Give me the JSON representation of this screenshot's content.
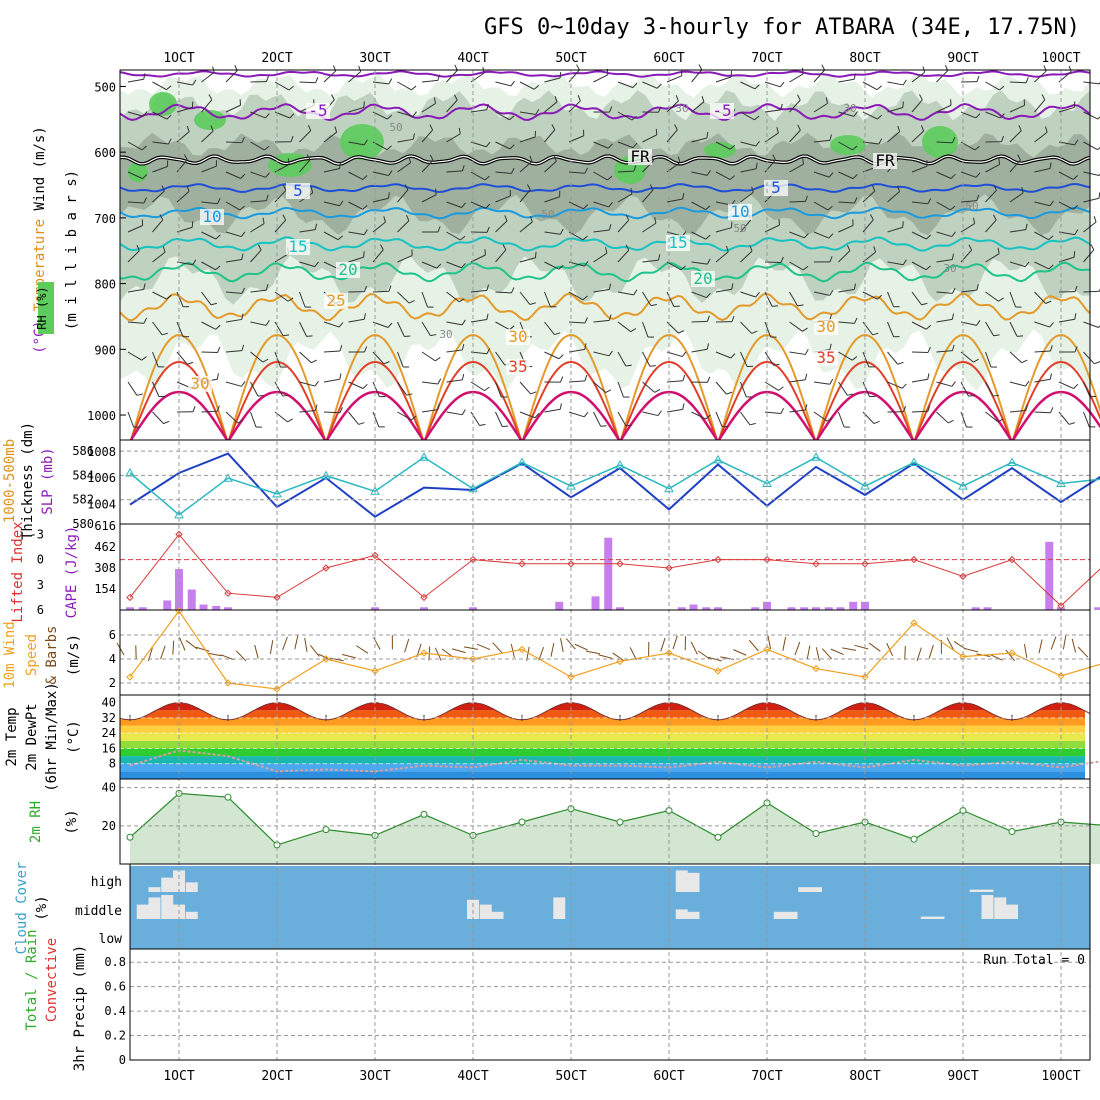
{
  "title": "GFS 0~10day 3-hourly for ATBARA (34E, 17.75N)",
  "colors": {
    "grid": "#999999",
    "frame": "#000000",
    "temp_purple": "#8a1ab8",
    "temp_blue": "#1f4fd6",
    "temp_sky": "#1a9be0",
    "temp_teal": "#17c2c2",
    "temp_green": "#1ec48a",
    "temp_orange": "#e49a2a",
    "temp_red": "#e0402a",
    "temp_magenta": "#d0106e",
    "rh_dark": "#9fb09f",
    "rh_mid": "#bfd1bf",
    "rh_light": "#e6f2e6",
    "rh_green": "#5ccc5c",
    "thickness": "#1f3fc6",
    "slp": "#28b8c0",
    "lifted": "#d83a3a",
    "cape": "#c77ff0",
    "wind_speed": "#f0a020",
    "wind_barb": "#7a4a18",
    "dewpoint": "#d4a0a0",
    "rh2m": "#2e8b2e",
    "rh2m_fill": "#d2e6d2",
    "cloud_bg": "#6aaedb",
    "cloud_bar": "#e8e8e8",
    "label_purple": "#8a1ab8",
    "label_red": "#e03030",
    "label_orange": "#e0901a",
    "label_teal": "#3aa0c8",
    "label_green": "#2eaa2e",
    "label_brown": "#7a4a18"
  },
  "dates": [
    "1OCT",
    "2OCT",
    "3OCT",
    "4OCT",
    "5OCT",
    "6OCT",
    "7OCT",
    "8OCT",
    "9OCT",
    "10OCT"
  ],
  "panels": {
    "upper_air": {
      "ylabel_parts": [
        {
          "text": "Wind (m/s)",
          "color": "#000000"
        },
        {
          "text": "Temperature",
          "color": "#e0901a"
        },
        {
          "text": "(°C)",
          "color": "#8a1ab8"
        }
      ],
      "ylabel2": "(m i l l i b a r s)",
      "rh_tag": "RH (%)",
      "yticks": [
        "500",
        "600",
        "700",
        "800",
        "900",
        "1000"
      ],
      "isotherm_labels": [
        "-5",
        "-5",
        "5",
        "5",
        "10",
        "10",
        "15",
        "15",
        "20",
        "20",
        "25",
        "30",
        "30",
        "35",
        "35",
        "30",
        "FR",
        "FR"
      ],
      "rh_labels": [
        "30",
        "30",
        "50",
        "50",
        "30",
        "50",
        "50",
        "30",
        "30"
      ]
    },
    "thickness": {
      "ylabel1": "1000-500mb",
      "ylabel2": "Thickness (dm)",
      "ylabel3": "SLP (mb)",
      "left_ticks": [
        "586",
        "584",
        "582",
        "580"
      ],
      "right_ticks": [
        "1008",
        "1006",
        "1004"
      ]
    },
    "stability": {
      "ylabel1": "Lifted Index",
      "ylabel2": "CAPE (J/kg)",
      "left_ticks": [
        "-3",
        "0",
        "3",
        "6"
      ],
      "right_ticks": [
        "616",
        "462",
        "308",
        "154"
      ]
    },
    "wind10m": {
      "ylabel1": "10m Wind",
      "ylabel2": "Speed",
      "ylabel3": "& Barbs",
      "ylabel4": "(m/s)",
      "ticks": [
        "6",
        "4",
        "2"
      ]
    },
    "temp2m": {
      "ylabel1": "2m Temp",
      "ylabel2": "2m DewPt",
      "ylabel3": "(6hr Min/Max)",
      "ylabel4": "(°C)",
      "ticks": [
        "40",
        "32",
        "24",
        "16",
        "8"
      ]
    },
    "rh2m": {
      "ylabel1": "2m RH",
      "ylabel2": "(%)",
      "ticks": [
        "40",
        "20"
      ]
    },
    "cloud": {
      "ylabel1": "Cloud Cover",
      "ylabel2": "(%)",
      "levels": [
        "high",
        "middle",
        "low"
      ]
    },
    "precip": {
      "ylabel1": "Total / Rain",
      "ylabel2": "Convective",
      "ylabel3": "3hr Precip (mm)",
      "ticks": [
        "0.8",
        "0.6",
        "0.4",
        "0.2",
        "0"
      ],
      "run_total": "Run Total = 0"
    }
  },
  "chart_data": [
    {
      "type": "line",
      "title": "1000-500mb Thickness (dm) / SLP (mb)",
      "x_unit": "day",
      "x": [
        0,
        0.5,
        1,
        1.5,
        2,
        2.5,
        3,
        3.5,
        4,
        4.5,
        5,
        5.5,
        6,
        6.5,
        7,
        7.5,
        8,
        8.5,
        9,
        9.5,
        10
      ],
      "series": [
        {
          "name": "1000-500mb Thickness (dm)",
          "values": [
            581.6,
            584.2,
            585.8,
            581.4,
            583.8,
            580.6,
            583.0,
            582.8,
            585.0,
            582.2,
            584.6,
            581.2,
            584.9,
            581.5,
            584.7,
            582.4,
            585.0,
            582.0,
            584.6,
            581.8,
            584.4
          ]
        },
        {
          "name": "SLP (mb)",
          "values": [
            1006.4,
            1003.2,
            1006.0,
            1004.8,
            1006.2,
            1005.0,
            1007.6,
            1005.2,
            1007.2,
            1005.4,
            1007.0,
            1005.2,
            1007.4,
            1005.6,
            1007.6,
            1005.4,
            1007.2,
            1005.4,
            1007.2,
            1005.6,
            1006.0
          ]
        }
      ],
      "ylim_left": [
        580,
        587
      ],
      "ylim_right": [
        1002.5,
        1009
      ]
    },
    {
      "type": "bar",
      "title": "Lifted Index / CAPE (J/kg)",
      "x_unit": "day",
      "cape_x": [
        0,
        0.13,
        0.38,
        0.5,
        0.63,
        0.75,
        0.88,
        1.0,
        2.5,
        3.0,
        3.5,
        4.38,
        4.75,
        4.88,
        5.0,
        5.63,
        5.75,
        5.88,
        6.0,
        6.38,
        6.5,
        6.75,
        6.88,
        7.0,
        7.13,
        7.25,
        7.38,
        7.5,
        8.63,
        8.75,
        9.38,
        9.5,
        9.88,
        10.0
      ],
      "cape_values": [
        20,
        20,
        70,
        300,
        150,
        40,
        30,
        20,
        20,
        20,
        20,
        60,
        100,
        530,
        20,
        20,
        40,
        20,
        20,
        20,
        60,
        20,
        20,
        20,
        20,
        20,
        60,
        60,
        20,
        20,
        500,
        20,
        20,
        20
      ],
      "lifted_index_x": [
        0,
        0.5,
        1,
        1.5,
        2,
        2.5,
        3,
        3.5,
        4,
        4.5,
        5,
        5.5,
        6,
        6.5,
        7,
        7.5,
        8,
        8.5,
        9,
        9.5,
        10
      ],
      "lifted_index": [
        4.5,
        -3.0,
        4.0,
        4.5,
        1.0,
        -0.5,
        4.5,
        0.0,
        0.5,
        0.5,
        0.5,
        1.0,
        0.0,
        0.0,
        0.5,
        0.5,
        0.0,
        2.0,
        0.0,
        5.5,
        0.0
      ],
      "ylim_cape": [
        0,
        616
      ],
      "ylim_li": [
        6,
        -4
      ]
    },
    {
      "type": "line",
      "title": "10m Wind Speed (m/s)",
      "x_unit": "day",
      "x": [
        0,
        0.5,
        1,
        1.5,
        2,
        2.5,
        3,
        3.5,
        4,
        4.5,
        5,
        5.5,
        6,
        6.5,
        7,
        7.5,
        8,
        8.5,
        9,
        9.5,
        10
      ],
      "series": [
        {
          "name": "10m Wind Speed",
          "values": [
            2.5,
            8.0,
            2.0,
            1.5,
            4.0,
            3.0,
            4.5,
            4.0,
            4.8,
            2.5,
            3.8,
            4.5,
            3.0,
            4.8,
            3.2,
            2.5,
            7.0,
            4.2,
            4.5,
            2.6,
            3.8
          ]
        }
      ],
      "ylim": [
        1,
        8
      ]
    },
    {
      "type": "area",
      "title": "2m Temp / 2m DewPt (°C)",
      "x_unit": "day",
      "x": [
        0,
        0.5,
        1,
        1.5,
        2,
        2.5,
        3,
        3.5,
        4,
        4.5,
        5,
        5.5,
        6,
        6.5,
        7,
        7.5,
        8,
        8.5,
        9,
        9.5,
        10
      ],
      "series": [
        {
          "name": "2m Temp",
          "values": [
            31,
            39,
            31,
            40,
            31,
            40,
            31,
            40,
            31,
            40,
            31,
            40,
            31,
            40,
            31,
            40,
            31,
            40,
            31,
            40,
            34
          ]
        },
        {
          "name": "2m DewPt",
          "values": [
            7,
            15,
            12,
            4,
            5,
            4,
            7,
            6,
            10,
            7,
            7,
            6,
            9,
            6,
            9,
            6,
            10,
            7,
            9,
            6,
            10
          ]
        }
      ],
      "ylim": [
        0,
        44
      ]
    },
    {
      "type": "line",
      "title": "2m RH (%)",
      "x_unit": "day",
      "x": [
        0,
        0.5,
        1,
        1.5,
        2,
        2.5,
        3,
        3.5,
        4,
        4.5,
        5,
        5.5,
        6,
        6.5,
        7,
        7.5,
        8,
        8.5,
        9,
        9.5,
        10
      ],
      "series": [
        {
          "name": "2m RH",
          "values": [
            14,
            37,
            35,
            10,
            18,
            15,
            26,
            15,
            22,
            29,
            22,
            28,
            14,
            32,
            16,
            22,
            13,
            28,
            17,
            22,
            20
          ]
        }
      ],
      "ylim": [
        0,
        44
      ]
    },
    {
      "type": "bar",
      "title": "Cloud Cover (%)",
      "x_unit": "day",
      "high_x": [
        0.25,
        0.38,
        0.5,
        0.63,
        5.63,
        5.75,
        6.88,
        7.0,
        8.63,
        8.75
      ],
      "high_values": [
        20,
        60,
        90,
        40,
        90,
        80,
        20,
        20,
        10,
        10
      ],
      "middle_x": [
        0.13,
        0.25,
        0.38,
        0.5,
        0.63,
        3.5,
        3.63,
        3.75,
        4.38,
        5.63,
        5.75,
        6.63,
        6.75,
        8.13,
        8.25,
        8.75,
        8.88,
        9.0
      ],
      "middle_values": [
        60,
        90,
        100,
        60,
        30,
        80,
        60,
        30,
        90,
        40,
        30,
        30,
        30,
        10,
        10,
        100,
        90,
        60
      ],
      "low_x": [],
      "low_values": []
    },
    {
      "type": "bar",
      "title": "3hr Precip (mm)",
      "x_unit": "day",
      "x": [],
      "values": [],
      "ylim": [
        0,
        0.9
      ],
      "run_total": 0
    }
  ]
}
